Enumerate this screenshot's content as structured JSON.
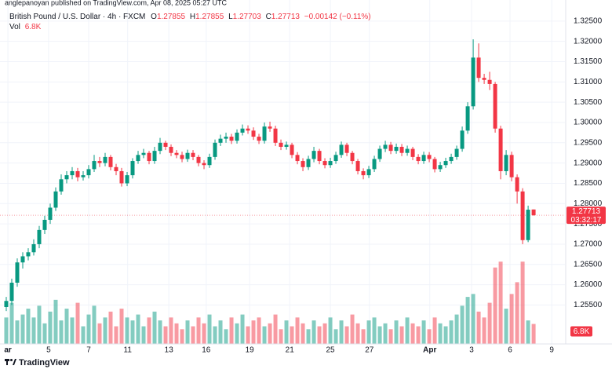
{
  "chart_data": {
    "type": "candlestick",
    "publisher": "anglepanoyan published on TradingView.com, Apr 08, 2025 05:27 UTC",
    "symbol": "British Pound / U.S. Dollar · 4h · FXCM",
    "ohlc_labels": [
      "O",
      "H",
      "L",
      "C"
    ],
    "ohlc_values": [
      "1.27855",
      "1.27855",
      "1.27703",
      "1.27713"
    ],
    "change": "−0.00142 (−0.11%)",
    "volume_title": "Vol",
    "volume_label": "6.8K",
    "brand": "TradingView",
    "last_price": {
      "value": 1.27713,
      "label": "1.27713"
    },
    "countdown": "03:32:17",
    "up_color": "#089981",
    "down_color": "#f23645",
    "volume_up_color": "rgba(8,153,129,0.5)",
    "volume_down_color": "rgba(242,54,69,0.5)",
    "ylim": [
      1.2454,
      1.3302
    ],
    "yticks": [
      {
        "value": 1.325,
        "label": "1.32500"
      },
      {
        "value": 1.32,
        "label": "1.32000"
      },
      {
        "value": 1.315,
        "label": "1.31500"
      },
      {
        "value": 1.31,
        "label": "1.31000"
      },
      {
        "value": 1.305,
        "label": "1.30500"
      },
      {
        "value": 1.3,
        "label": "1.30000"
      },
      {
        "value": 1.295,
        "label": "1.29500"
      },
      {
        "value": 1.29,
        "label": "1.29000"
      },
      {
        "value": 1.285,
        "label": "1.28500"
      },
      {
        "value": 1.28,
        "label": "1.28000"
      },
      {
        "value": 1.275,
        "label": "1.27500"
      },
      {
        "value": 1.27,
        "label": "1.27000"
      },
      {
        "value": 1.265,
        "label": "1.26500"
      },
      {
        "value": 1.26,
        "label": "1.26000"
      },
      {
        "value": 1.255,
        "label": "1.25500"
      }
    ],
    "xlim": [
      -1.14,
      101.7
    ],
    "xticks": [
      {
        "value": 0.3,
        "label": "ar"
      },
      {
        "value": 7.7,
        "label": "5"
      },
      {
        "value": 15,
        "label": "7"
      },
      {
        "value": 22.1,
        "label": "11"
      },
      {
        "value": 29.6,
        "label": "13"
      },
      {
        "value": 36.4,
        "label": "16"
      },
      {
        "value": 44.3,
        "label": "19"
      },
      {
        "value": 51.6,
        "label": "21"
      },
      {
        "value": 59,
        "label": "25"
      },
      {
        "value": 66.1,
        "label": "27"
      },
      {
        "value": 77.1,
        "label": "Apr"
      },
      {
        "value": 84.7,
        "label": "3"
      },
      {
        "value": 91.7,
        "label": "6"
      },
      {
        "value": 99.3,
        "label": "9"
      }
    ],
    "vlim": [
      0,
      117000
    ],
    "open": [
      1.2545,
      1.256,
      1.2605,
      1.2655,
      1.267,
      1.268,
      1.27,
      1.2735,
      1.276,
      1.279,
      1.283,
      1.286,
      1.287,
      1.288,
      1.2865,
      1.287,
      1.2885,
      1.2905,
      1.29,
      1.2915,
      1.289,
      1.288,
      1.285,
      1.287,
      1.2905,
      1.292,
      1.2925,
      1.2905,
      1.293,
      1.295,
      1.294,
      1.2925,
      1.292,
      1.291,
      1.2925,
      1.2915,
      1.29,
      1.2895,
      1.2915,
      1.295,
      1.296,
      1.2965,
      1.2955,
      1.2975,
      1.2985,
      1.298,
      1.2965,
      1.2955,
      1.299,
      1.2985,
      1.295,
      1.294,
      1.2945,
      1.292,
      1.2905,
      1.289,
      1.291,
      1.293,
      1.2905,
      1.2895,
      1.2905,
      1.292,
      1.2945,
      1.2925,
      1.2905,
      1.288,
      1.287,
      1.2885,
      1.291,
      1.2935,
      1.2945,
      1.293,
      1.294,
      1.2925,
      1.2935,
      1.2915,
      1.2905,
      1.292,
      1.291,
      1.2885,
      1.2895,
      1.2905,
      1.2915,
      1.2935,
      1.298,
      1.304,
      1.316,
      1.311,
      1.3105,
      1.3095,
      1.2985,
      1.288,
      1.292,
      1.2865,
      1.283,
      1.271,
      1.27855
    ],
    "high": [
      1.257,
      1.2615,
      1.2665,
      1.268,
      1.269,
      1.2712,
      1.2745,
      1.277,
      1.28,
      1.284,
      1.2872,
      1.288,
      1.289,
      1.2888,
      1.288,
      1.2895,
      1.292,
      1.2915,
      1.2925,
      1.292,
      1.2898,
      1.2888,
      1.2878,
      1.2912,
      1.293,
      1.2935,
      1.293,
      1.294,
      1.2962,
      1.2955,
      1.2946,
      1.2932,
      1.2928,
      1.2933,
      1.2932,
      1.292,
      1.2907,
      1.2923,
      1.2958,
      1.297,
      1.2975,
      1.2972,
      1.2983,
      1.2995,
      1.2993,
      1.2988,
      1.2972,
      1.3,
      1.3002,
      1.2992,
      1.2958,
      1.2953,
      1.295,
      1.2927,
      1.2912,
      1.2918,
      1.294,
      1.2935,
      1.2912,
      1.2913,
      1.2928,
      1.2953,
      1.295,
      1.293,
      1.291,
      1.2887,
      1.2893,
      1.2918,
      1.2943,
      1.2955,
      1.2952,
      1.2948,
      1.2947,
      1.2943,
      1.294,
      1.2922,
      1.2928,
      1.2927,
      1.2915,
      1.2903,
      1.2913,
      1.2923,
      1.2943,
      1.299,
      1.305,
      1.3205,
      1.3195,
      1.312,
      1.3125,
      1.31,
      1.2992,
      1.2932,
      1.2928,
      1.2872,
      1.2838,
      1.2795,
      1.27855
    ],
    "low": [
      1.2535,
      1.255,
      1.2595,
      1.264,
      1.266,
      1.2672,
      1.269,
      1.2725,
      1.275,
      1.2782,
      1.2822,
      1.285,
      1.286,
      1.2855,
      1.2857,
      1.2862,
      1.2878,
      1.289,
      1.2892,
      1.2882,
      1.287,
      1.2842,
      1.2843,
      1.2862,
      1.2898,
      1.2912,
      1.2897,
      1.2898,
      1.2922,
      1.2932,
      1.2917,
      1.2912,
      1.2902,
      1.2903,
      1.2907,
      1.2892,
      1.2885,
      1.2888,
      1.2908,
      1.2942,
      1.295,
      1.2947,
      1.2948,
      1.2968,
      1.2972,
      1.2957,
      1.2947,
      1.2948,
      1.2977,
      1.2942,
      1.2932,
      1.2933,
      1.2912,
      1.2897,
      1.288,
      1.2883,
      1.2902,
      1.2897,
      1.2887,
      1.2888,
      1.2898,
      1.2913,
      1.2917,
      1.2897,
      1.2872,
      1.286,
      1.2863,
      1.2878,
      1.2903,
      1.2927,
      1.2922,
      1.2923,
      1.2917,
      1.2918,
      1.2907,
      1.2897,
      1.2898,
      1.2902,
      1.2877,
      1.2878,
      1.2888,
      1.2898,
      1.2908,
      1.2928,
      1.2972,
      1.3032,
      1.31,
      1.3095,
      1.308,
      1.2975,
      1.286,
      1.287,
      1.2855,
      1.28,
      1.27,
      1.2705,
      1.27703
    ],
    "close": [
      1.256,
      1.2605,
      1.2655,
      1.267,
      1.268,
      1.27,
      1.2735,
      1.276,
      1.279,
      1.283,
      1.286,
      1.287,
      1.288,
      1.2865,
      1.287,
      1.2885,
      1.2905,
      1.29,
      1.2915,
      1.289,
      1.288,
      1.285,
      1.287,
      1.2905,
      1.292,
      1.2925,
      1.2905,
      1.293,
      1.295,
      1.294,
      1.2925,
      1.292,
      1.291,
      1.2925,
      1.2915,
      1.29,
      1.2895,
      1.2915,
      1.295,
      1.296,
      1.2965,
      1.2955,
      1.2975,
      1.2985,
      1.298,
      1.2965,
      1.2955,
      1.299,
      1.2985,
      1.295,
      1.294,
      1.2945,
      1.292,
      1.2905,
      1.289,
      1.291,
      1.293,
      1.2905,
      1.2895,
      1.2905,
      1.292,
      1.2945,
      1.2925,
      1.2905,
      1.288,
      1.287,
      1.2885,
      1.291,
      1.2935,
      1.2945,
      1.293,
      1.294,
      1.2925,
      1.2935,
      1.2915,
      1.2905,
      1.292,
      1.291,
      1.2885,
      1.2895,
      1.2905,
      1.2915,
      1.2935,
      1.298,
      1.304,
      1.316,
      1.311,
      1.3105,
      1.3095,
      1.2985,
      1.288,
      1.292,
      1.2865,
      1.283,
      1.271,
      1.2785,
      1.27713
    ],
    "volume": [
      9000,
      14000,
      8000,
      10000,
      12000,
      9000,
      13000,
      7000,
      11000,
      15000,
      8000,
      12000,
      9000,
      14000,
      6000,
      10000,
      13000,
      7000,
      9000,
      11000,
      6000,
      12000,
      9000,
      8000,
      10000,
      6000,
      9000,
      11000,
      8000,
      6000,
      9000,
      7000,
      5000,
      8000,
      6000,
      9000,
      7000,
      10000,
      6000,
      8000,
      5000,
      9000,
      7000,
      10000,
      6000,
      8000,
      9000,
      6000,
      7000,
      10000,
      5000,
      8000,
      6000,
      9000,
      7000,
      5000,
      8000,
      6000,
      7000,
      9000,
      5000,
      8000,
      6000,
      10000,
      7000,
      5000,
      8000,
      9000,
      6000,
      7000,
      5000,
      8000,
      6000,
      9000,
      7000,
      6000,
      8000,
      5000,
      9000,
      7000,
      6000,
      8000,
      10000,
      13000,
      16000,
      17000,
      11000,
      9000,
      14000,
      26000,
      28000,
      12000,
      17000,
      21000,
      28000,
      8000,
      6800
    ]
  }
}
